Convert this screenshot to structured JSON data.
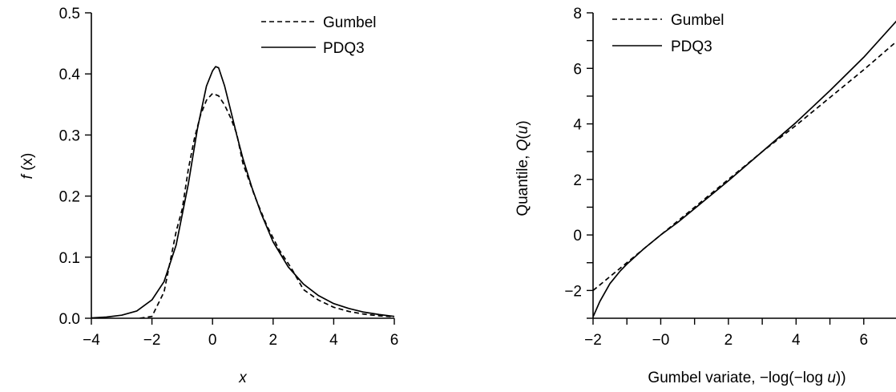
{
  "chart_data": [
    {
      "type": "line",
      "xlabel": "x",
      "ylabel_italic": "f",
      "ylabel_rest": " (x)",
      "xlim": [
        -4,
        6
      ],
      "ylim": [
        0,
        0.5
      ],
      "xticks": [
        -4,
        -2,
        0,
        2,
        4,
        6
      ],
      "xtick_labels": [
        "−4",
        "−2",
        "0",
        "2",
        "4",
        "6"
      ],
      "yticks": [
        0,
        0.1,
        0.2,
        0.3,
        0.4,
        0.5
      ],
      "ytick_labels": [
        "0.0",
        "0.1",
        "0.2",
        "0.3",
        "0.4",
        "0.5"
      ],
      "legend": "top-right",
      "grid": false,
      "series": [
        {
          "name": "Gumbel",
          "style": "dashed",
          "x": [
            -2.4,
            -2.0,
            -1.6,
            -1.2,
            -1.0,
            -0.8,
            -0.6,
            -0.4,
            -0.2,
            0.0,
            0.2,
            0.4,
            0.6,
            0.8,
            1.0,
            1.4,
            1.8,
            2.2,
            2.6,
            3.0,
            3.5,
            4.0,
            4.5,
            5.0,
            5.5,
            6.0
          ],
          "y": [
            0.0,
            0.003,
            0.043,
            0.142,
            0.179,
            0.244,
            0.294,
            0.332,
            0.357,
            0.368,
            0.364,
            0.349,
            0.328,
            0.302,
            0.254,
            0.199,
            0.151,
            0.112,
            0.082,
            0.047,
            0.0297,
            0.018,
            0.0111,
            0.0067,
            0.004,
            0.0025
          ]
        },
        {
          "name": "PDQ3",
          "style": "solid",
          "x": [
            -4.0,
            -3.5,
            -3.0,
            -2.5,
            -2.0,
            -1.6,
            -1.2,
            -0.8,
            -0.5,
            -0.2,
            0.0,
            0.1,
            0.2,
            0.4,
            0.6,
            0.8,
            1.0,
            1.3,
            1.6,
            2.0,
            2.5,
            3.0,
            3.5,
            4.0,
            4.5,
            5.0,
            5.5,
            6.0
          ],
          "y": [
            0.0005,
            0.002,
            0.005,
            0.012,
            0.03,
            0.06,
            0.12,
            0.22,
            0.31,
            0.38,
            0.405,
            0.412,
            0.41,
            0.38,
            0.34,
            0.3,
            0.262,
            0.214,
            0.172,
            0.125,
            0.084,
            0.056,
            0.037,
            0.024,
            0.016,
            0.01,
            0.006,
            0.003
          ]
        }
      ]
    },
    {
      "type": "line",
      "xlabel": "Gumbel variate, −log(−log u))",
      "xlabel_pre": "Gumbel variate, −log(−log ",
      "xlabel_var": "u",
      "xlabel_post": "))",
      "ylabel_pre": "Quantile,  ",
      "ylabel_q": "Q",
      "ylabel_open": "(",
      "ylabel_u": "u",
      "ylabel_close": ")",
      "xlim": [
        -2,
        7
      ],
      "ylim": [
        -3,
        8
      ],
      "xticks": [
        -2,
        -1,
        0,
        1,
        2,
        3,
        4,
        5,
        6
      ],
      "xtick_labels": [
        "−2",
        "",
        "−0",
        "",
        "2",
        "",
        "4",
        "",
        "6"
      ],
      "yticks": [
        -3,
        -2,
        -1,
        0,
        1,
        2,
        3,
        4,
        5,
        6,
        7,
        8
      ],
      "ytick_labels": [
        "",
        "−2",
        "",
        "0",
        "",
        "2",
        "",
        "4",
        "",
        "6",
        "",
        "8"
      ],
      "legend": "top-left",
      "grid": false,
      "series": [
        {
          "name": "Gumbel",
          "style": "dashed",
          "x": [
            -2.0,
            -1.5,
            -1.0,
            -0.5,
            0.0,
            0.5,
            1.0,
            2.0,
            3.0,
            4.0,
            5.0,
            6.0,
            7.0
          ],
          "y": [
            -2.0,
            -1.5,
            -1.0,
            -0.5,
            0.0,
            0.5,
            1.0,
            2.0,
            3.0,
            3.95,
            4.95,
            5.95,
            7.0
          ]
        },
        {
          "name": "PDQ3",
          "style": "solid",
          "x": [
            -2.0,
            -1.8,
            -1.5,
            -1.2,
            -1.0,
            -0.5,
            0.0,
            0.5,
            1.0,
            2.0,
            3.0,
            4.0,
            5.0,
            6.0,
            7.0
          ],
          "y": [
            -2.95,
            -2.4,
            -1.75,
            -1.3,
            -1.05,
            -0.5,
            0.0,
            0.45,
            0.95,
            1.95,
            3.0,
            4.05,
            5.2,
            6.4,
            7.75
          ]
        }
      ]
    }
  ]
}
